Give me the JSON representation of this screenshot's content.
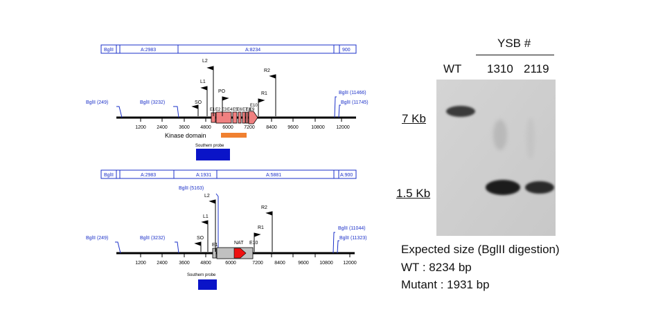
{
  "map_wt": {
    "fragments": [
      "BglII",
      "A:2983",
      "A:8234",
      "900"
    ],
    "sites": [
      "BglII (249)",
      "BglII (3232)",
      "BglII (11466)",
      "BglII (11745)"
    ],
    "ticks": [
      "1200",
      "2400",
      "3600",
      "4800",
      "6000",
      "7200",
      "8400",
      "9600",
      "10800",
      "12000"
    ],
    "primers": [
      "L2",
      "L1",
      "SO",
      "PO",
      "R1",
      "R2",
      "E10"
    ],
    "exons": [
      "E1",
      "E2",
      "E3",
      "E4",
      "E5",
      "E6",
      "E7",
      "E8",
      "E9"
    ],
    "domain_label": "Kinase domain",
    "probe_label": "Southern probe"
  },
  "map_mut": {
    "fragments": [
      "BglII",
      "A:2983",
      "A:1931",
      "A:5881",
      "A:900"
    ],
    "sites": [
      "BglII (249)",
      "BglII (3232)",
      "BglII (5163)",
      "BglII (11044)",
      "BglII (11323)"
    ],
    "ticks": [
      "1200",
      "2400",
      "3600",
      "4800",
      "6000",
      "7200",
      "8400",
      "9600",
      "10800",
      "12000"
    ],
    "primers": [
      "L2",
      "L1",
      "SO",
      "R1",
      "R2"
    ],
    "exons": [
      "E1",
      "E10"
    ],
    "cassette_label": "NAT",
    "probe_label": "Southern probe"
  },
  "blot": {
    "group_label": "YSB #",
    "lanes": [
      "WT",
      "1310",
      "2119"
    ],
    "markers": [
      "7 Kb",
      "1.5 Kb"
    ]
  },
  "caption": {
    "line1": "Expected size (BglII digestion)",
    "line2": "WT : 8234 bp",
    "line3": "Mutant : 1931 bp"
  },
  "colors": {
    "map_blue": "#1a2fc8",
    "exon_fill": "#f08080",
    "domain_bar": "#f08030",
    "probe_bar": "#0a14c8",
    "cassette_fill": "#c0c0c0",
    "nat_arrow": "#ee1111"
  }
}
